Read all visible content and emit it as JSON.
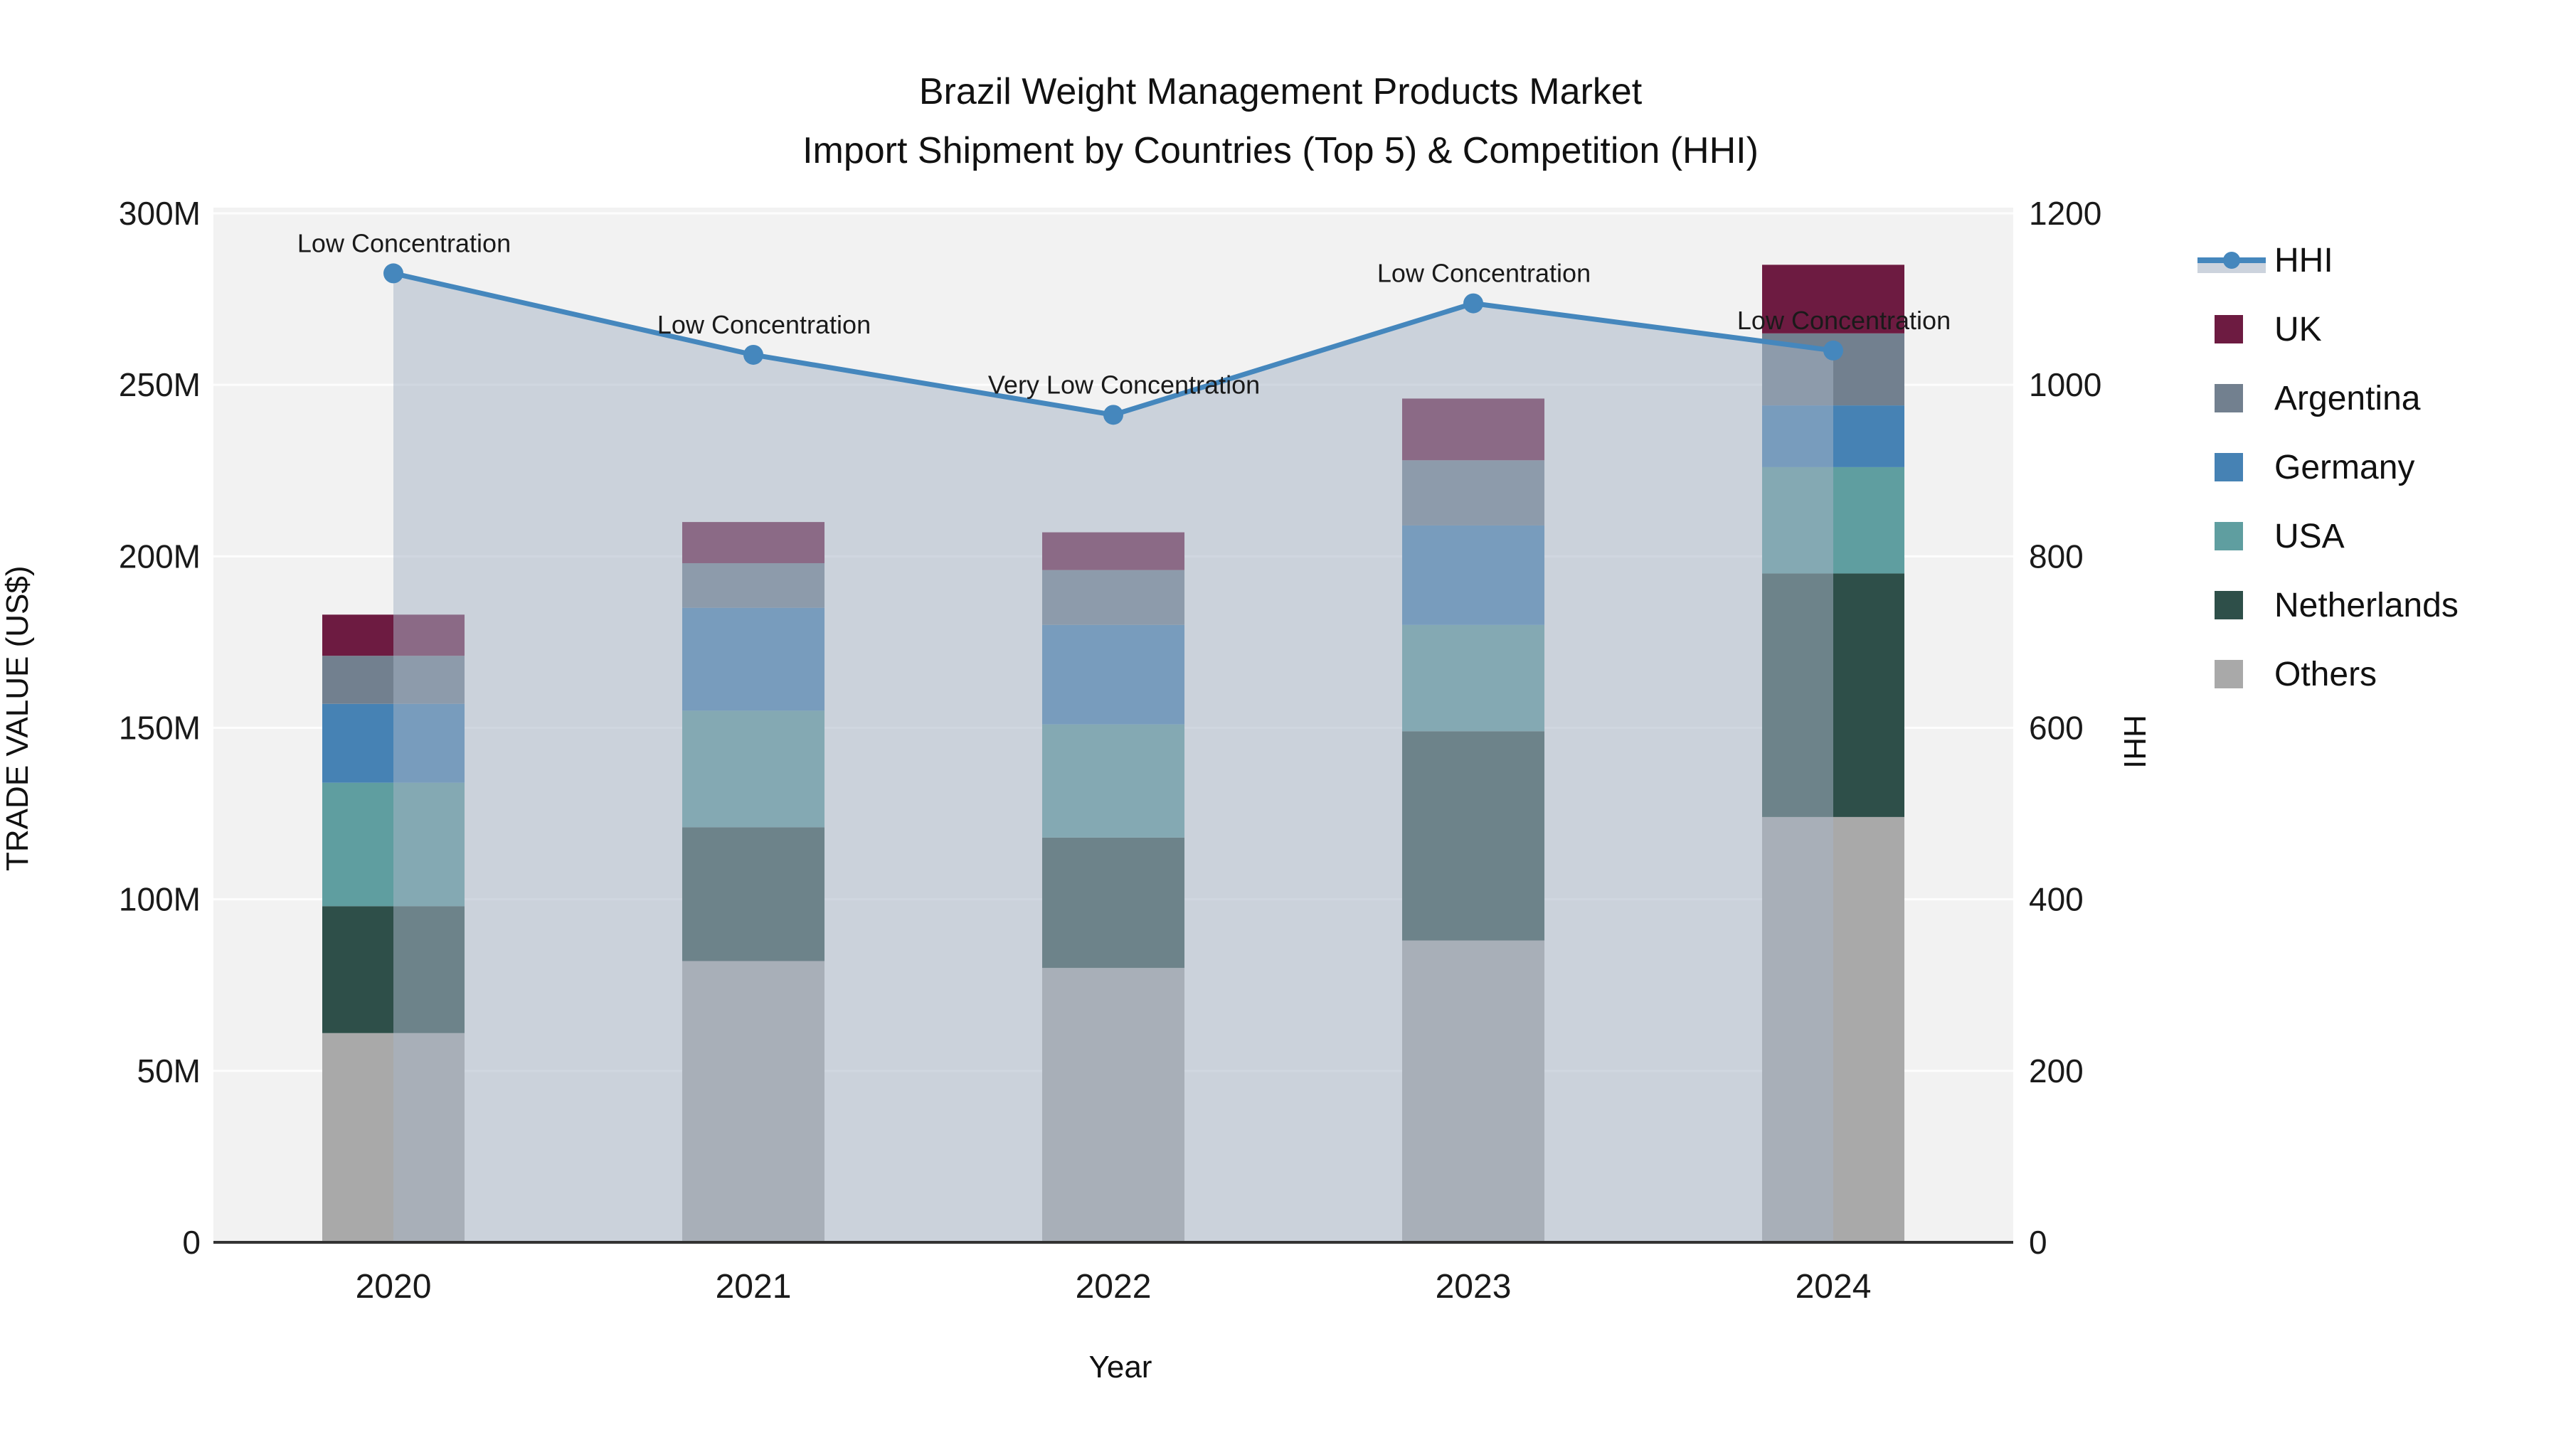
{
  "title": {
    "line1": "Brazil Weight Management Products Market",
    "line2": "Import Shipment by Countries (Top 5) & Competition (HHI)"
  },
  "axes": {
    "y_left": {
      "label": "TRADE VALUE (US$)",
      "ticks": [
        "0",
        "50M",
        "100M",
        "150M",
        "200M",
        "250M",
        "300M"
      ],
      "range_m": [
        0,
        300
      ]
    },
    "y_right": {
      "label": "HHI",
      "ticks": [
        "0",
        "200",
        "400",
        "600",
        "800",
        "1000",
        "1200"
      ],
      "range": [
        0,
        1200
      ]
    },
    "x": {
      "label": "Year",
      "categories": [
        "2020",
        "2021",
        "2022",
        "2023",
        "2024"
      ]
    }
  },
  "legend": {
    "items": [
      {
        "label": "HHI",
        "type": "line",
        "color": "#4587bd"
      },
      {
        "label": "UK",
        "type": "swatch",
        "color": "#6d1b41"
      },
      {
        "label": "Argentina",
        "type": "swatch",
        "color": "#72808f"
      },
      {
        "label": "Germany",
        "type": "swatch",
        "color": "#4682b4"
      },
      {
        "label": "USA",
        "type": "swatch",
        "color": "#5f9ea0"
      },
      {
        "label": "Netherlands",
        "type": "swatch",
        "color": "#2e4f49"
      },
      {
        "label": "Others",
        "type": "swatch",
        "color": "#a9a9a9"
      }
    ]
  },
  "colors": {
    "plot_background": "#f2f2f2",
    "gridline": "#ffffff",
    "spine": "#333333",
    "text": "#1a1a1a",
    "hhi_line": "#4587bd",
    "hhi_area": "rgba(167,180,198,0.52)"
  },
  "chart_data": {
    "type": "bar",
    "stacked": true,
    "categories": [
      "2020",
      "2021",
      "2022",
      "2023",
      "2024"
    ],
    "value_unit": "million US$",
    "series": [
      {
        "name": "Others",
        "color": "#a9a9a9",
        "values": [
          61,
          82,
          80,
          88,
          124
        ]
      },
      {
        "name": "Netherlands",
        "color": "#2e4f49",
        "values": [
          37,
          39,
          38,
          61,
          71
        ]
      },
      {
        "name": "USA",
        "color": "#5f9ea0",
        "values": [
          36,
          34,
          33,
          31,
          31
        ]
      },
      {
        "name": "Germany",
        "color": "#4682b4",
        "values": [
          23,
          30,
          29,
          29,
          18
        ]
      },
      {
        "name": "Argentina",
        "color": "#72808f",
        "values": [
          14,
          13,
          16,
          19,
          21
        ]
      },
      {
        "name": "UK",
        "color": "#6d1b41",
        "values": [
          12,
          12,
          11,
          18,
          20
        ]
      }
    ],
    "stack_totals_m": [
      183,
      210,
      207,
      246,
      285
    ],
    "line": {
      "name": "HHI",
      "color": "#4587bd",
      "values": [
        1130,
        1035,
        965,
        1095,
        1040
      ],
      "annotations": [
        "Low Concentration",
        "Low Concentration",
        "Very Low Concentration",
        "Low Concentration",
        "Low Concentration"
      ],
      "axis": "right"
    },
    "ylim_left_m": [
      0,
      300
    ],
    "ylim_right": [
      0,
      1200
    ],
    "grid": true,
    "legend_position": "right"
  }
}
